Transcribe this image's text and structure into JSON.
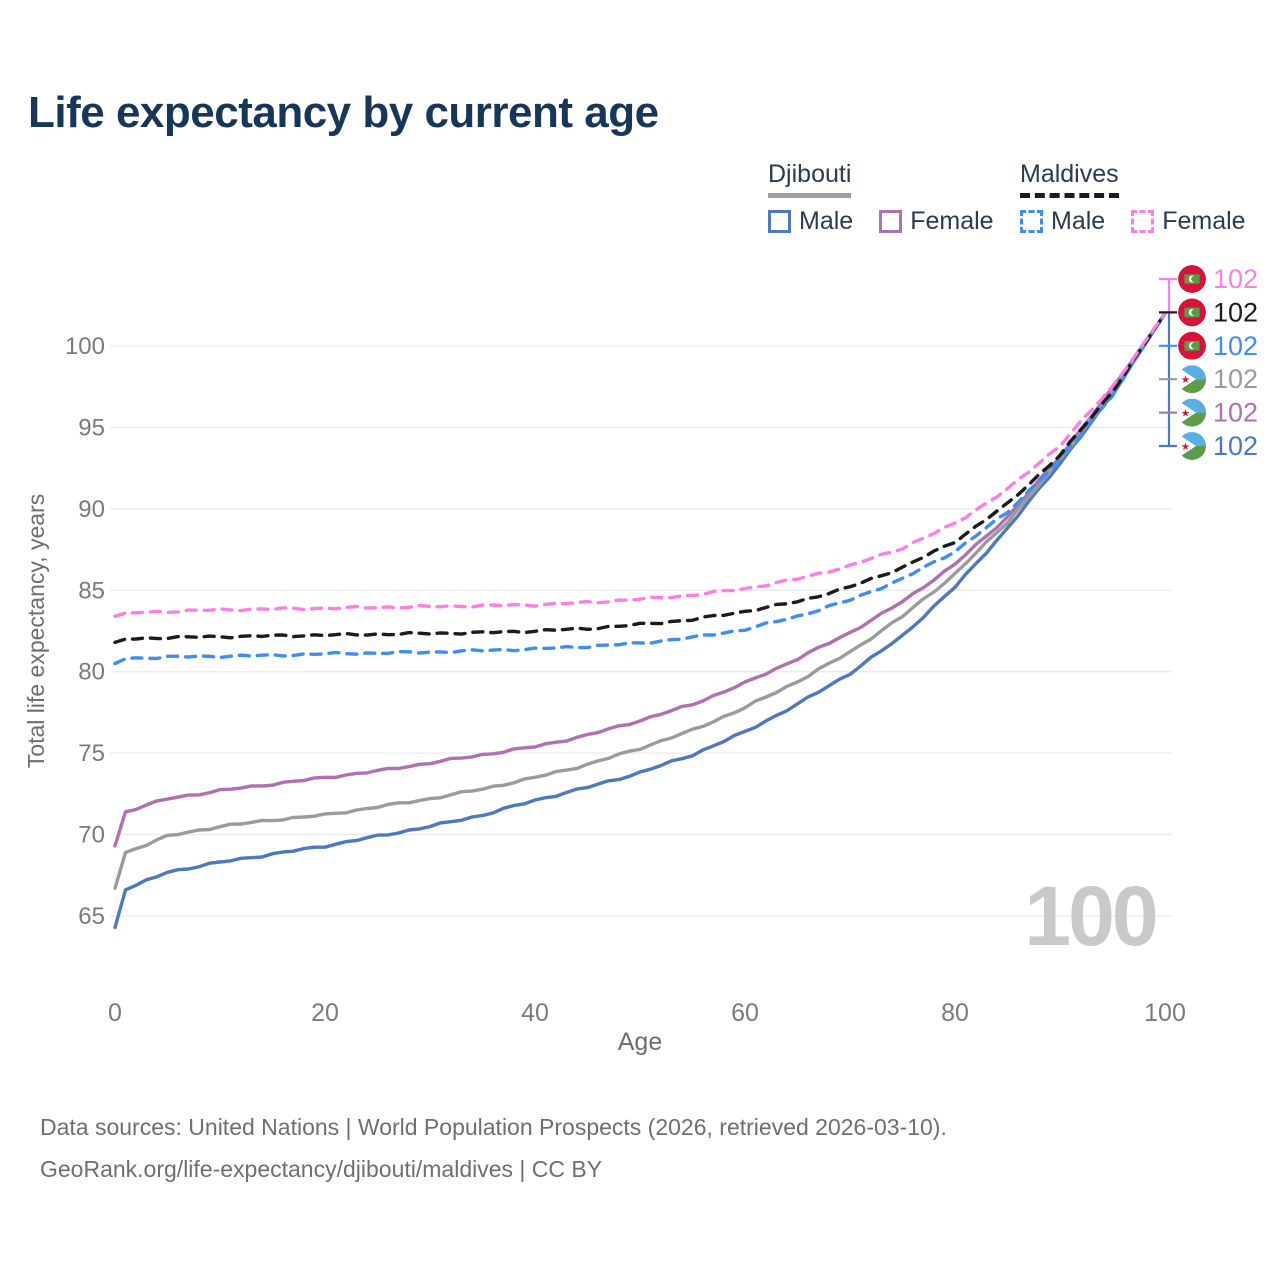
{
  "title": "Life expectancy by current age",
  "legend": {
    "groups": [
      {
        "name": "Djibouti",
        "line_style": "solid",
        "items": [
          {
            "label": "Male"
          },
          {
            "label": "Female"
          }
        ]
      },
      {
        "name": "Maldives",
        "line_style": "dashed",
        "items": [
          {
            "label": "Male"
          },
          {
            "label": "Female"
          }
        ]
      }
    ]
  },
  "watermark": "100",
  "footer": {
    "line1": "Data sources: United Nations | World Population Prospects (2026, retrieved 2026-03-10).",
    "line2": "GeoRank.org/life-expectancy/djibouti/maldives | CC BY"
  },
  "chart_data": {
    "type": "line",
    "title": "Life expectancy by current age",
    "xlabel": "Age",
    "ylabel": "Total life expectancy, years",
    "xlim": [
      0,
      100
    ],
    "ylim": [
      63,
      103
    ],
    "x_ticks": [
      0,
      20,
      40,
      60,
      80,
      100
    ],
    "y_ticks": [
      65,
      70,
      75,
      80,
      85,
      90,
      95,
      100
    ],
    "grid": "horizontal",
    "legend_position": "top-right",
    "ages": [
      0,
      1,
      5,
      10,
      15,
      20,
      25,
      30,
      35,
      40,
      45,
      50,
      55,
      60,
      65,
      70,
      75,
      80,
      85,
      90,
      95,
      100
    ],
    "series": [
      {
        "name": "Maldives Female",
        "country": "Maldives",
        "sex": "Female",
        "flag": "maldives",
        "color": "#fb7fe6",
        "dash": true,
        "end_label": "102",
        "values": [
          83.4,
          83.6,
          83.7,
          83.8,
          83.85,
          83.9,
          83.95,
          84.0,
          84.05,
          84.1,
          84.25,
          84.45,
          84.7,
          85.1,
          85.7,
          86.5,
          87.6,
          89.1,
          91.2,
          93.9,
          97.5,
          102
        ]
      },
      {
        "name": "Maldives Total",
        "country": "Maldives",
        "sex": "Total",
        "flag": "maldives",
        "color": "#1c1c1c",
        "dash": true,
        "end_label": "102",
        "values": [
          81.8,
          82.0,
          82.1,
          82.15,
          82.2,
          82.25,
          82.3,
          82.35,
          82.4,
          82.5,
          82.65,
          82.9,
          83.2,
          83.7,
          84.3,
          85.2,
          86.4,
          88.0,
          90.3,
          93.3,
          97.2,
          102
        ]
      },
      {
        "name": "Maldives Male",
        "country": "Maldives",
        "sex": "Male",
        "flag": "maldives",
        "color": "#3e8ef7",
        "dash": true,
        "end_label": "102",
        "values": [
          80.5,
          80.8,
          80.9,
          80.95,
          81.0,
          81.1,
          81.15,
          81.2,
          81.3,
          81.4,
          81.55,
          81.75,
          82.1,
          82.6,
          83.4,
          84.4,
          85.7,
          87.4,
          89.8,
          93.0,
          97.0,
          102
        ]
      },
      {
        "name": "Djibouti Total",
        "country": "Djibouti",
        "sex": "Total",
        "flag": "djibouti",
        "color": "#9b9b9b",
        "dash": false,
        "end_label": "102",
        "values": [
          66.7,
          68.9,
          69.9,
          70.5,
          70.9,
          71.2,
          71.7,
          72.2,
          72.8,
          73.5,
          74.3,
          75.3,
          76.4,
          77.8,
          79.4,
          81.2,
          83.4,
          86.0,
          89.2,
          93.0,
          97.2,
          102
        ]
      },
      {
        "name": "Djibouti Female",
        "country": "Djibouti",
        "sex": "Female",
        "flag": "djibouti",
        "color": "#b170b0",
        "dash": false,
        "end_label": "102",
        "values": [
          69.3,
          71.4,
          72.2,
          72.7,
          73.1,
          73.5,
          73.9,
          74.4,
          74.9,
          75.4,
          76.1,
          77.0,
          78.0,
          79.3,
          80.8,
          82.4,
          84.3,
          86.6,
          89.5,
          93.2,
          97.4,
          102
        ]
      },
      {
        "name": "Djibouti Male",
        "country": "Djibouti",
        "sex": "Male",
        "flag": "djibouti",
        "color": "#4c79bf",
        "dash": false,
        "end_label": "102",
        "values": [
          64.3,
          66.6,
          67.7,
          68.3,
          68.8,
          69.3,
          69.9,
          70.5,
          71.2,
          72.1,
          72.9,
          73.8,
          74.9,
          76.3,
          78.0,
          79.9,
          82.2,
          85.2,
          88.8,
          92.8,
          97.0,
          102
        ]
      }
    ],
    "flag_colors": {
      "maldives": {
        "bg": "#d8133b",
        "rect": "#569e43",
        "crescent": "#ffffff"
      },
      "djibouti": {
        "top": "#58aee5",
        "bottom": "#5d9c49",
        "wedge": "#ffffff",
        "star": "#cf1b2b"
      }
    }
  }
}
